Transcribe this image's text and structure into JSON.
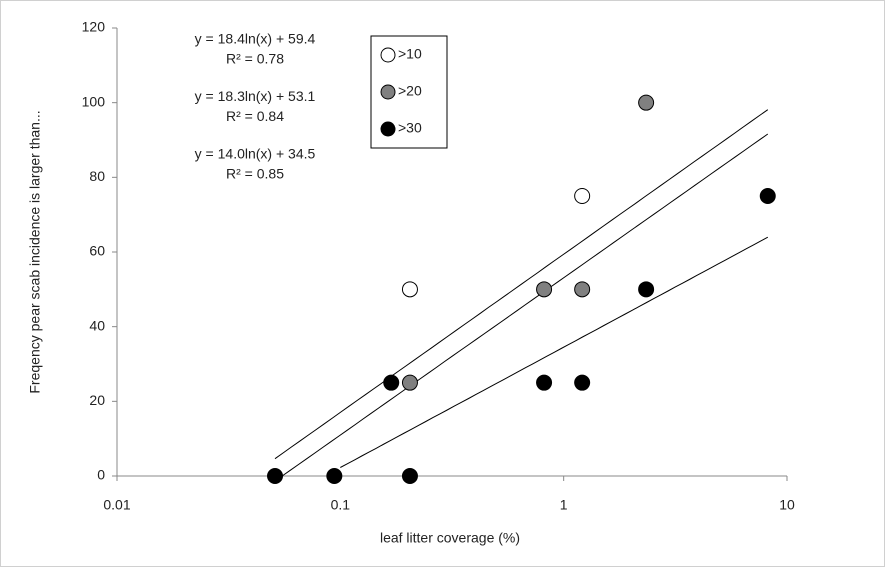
{
  "chart_data": {
    "type": "scatter",
    "xlabel": "leaf litter coverage (%)",
    "ylabel": "Freqency pear scab incidence is larger than...",
    "xscale": "log",
    "xlim": [
      0.01,
      10
    ],
    "xticks": [
      0.01,
      0.1,
      1,
      10
    ],
    "ylim": [
      0,
      120
    ],
    "yticks": [
      0,
      20,
      40,
      60,
      80,
      100,
      120
    ],
    "grid": false,
    "legend": "top",
    "series": [
      {
        "name": ">10",
        "color": "#ffffff",
        "x": [
          0.205,
          1.21
        ],
        "values": [
          50,
          75
        ],
        "equation": "y = 18.4ln(x) + 59.4",
        "r2": "R² = 0.78",
        "trend": {
          "slope": 18.4,
          "intercept": 59.4,
          "from": 0.051,
          "to": 8.2
        }
      },
      {
        "name": ">20",
        "color": "#808080",
        "x": [
          0.205,
          0.817,
          1.21,
          2.34
        ],
        "values": [
          25,
          50,
          50,
          100
        ],
        "equation": "y = 18.3ln(x) + 53.1",
        "r2": "R² = 0.84",
        "trend": {
          "slope": 18.3,
          "intercept": 53.1,
          "from": 0.055,
          "to": 8.2
        }
      },
      {
        "name": ">30",
        "color": "#000000",
        "x": [
          0.051,
          0.094,
          0.169,
          0.205,
          0.817,
          1.21,
          2.34,
          8.2
        ],
        "values": [
          0,
          0,
          25,
          0,
          25,
          25,
          50,
          75
        ],
        "equation": "y = 14.0ln(x) + 34.5",
        "r2": "R² = 0.85",
        "trend": {
          "slope": 14.0,
          "intercept": 34.5,
          "from": 0.1,
          "to": 8.2
        }
      }
    ]
  }
}
